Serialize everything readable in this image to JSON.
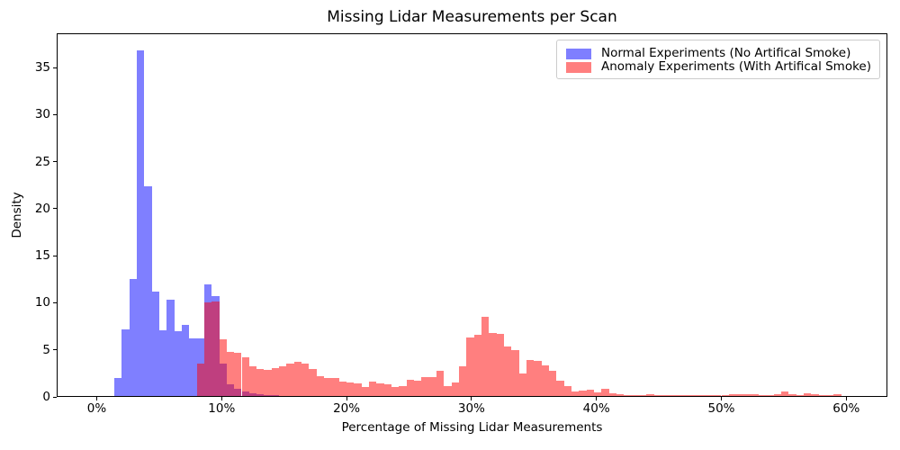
{
  "figure": {
    "title": "Missing Lidar Measurements per Scan",
    "xlabel": "Percentage of Missing Lidar Measurements",
    "ylabel": "Density"
  },
  "legend": {
    "items": [
      {
        "label": "Normal Experiments (No Artifical Smoke)",
        "color": "#7f7fff"
      },
      {
        "label": "Anomaly Experiments (With Artifical Smoke)",
        "color": "#ff7f7f"
      }
    ]
  },
  "colors": {
    "normal_bar": "#7f7fff",
    "anomaly_bar": "rgba(255,0,0,0.5)",
    "overlap_seen": "#bf4080",
    "axis": "#000000",
    "legend_border": "#cccccc"
  },
  "chart_data": {
    "type": "bar",
    "subtype": "overlaid-histogram",
    "title": "Missing Lidar Measurements per Scan",
    "xlabel": "Percentage of Missing Lidar Measurements",
    "ylabel": "Density",
    "grid": false,
    "legend_position": "upper right",
    "xlim_percent": [
      -3.2,
      63.3
    ],
    "ylim": [
      0,
      38.6
    ],
    "x_tick_values": [
      0,
      10,
      20,
      30,
      40,
      50,
      60
    ],
    "x_tick_labels": [
      "0%",
      "10%",
      "20%",
      "30%",
      "40%",
      "50%",
      "60%"
    ],
    "y_tick_values": [
      0,
      5,
      10,
      15,
      20,
      25,
      30,
      35
    ],
    "bin_width_percent": 0.6,
    "series": [
      {
        "name": "Normal Experiments (No Artifical Smoke)",
        "css_fill": "#7f7fff",
        "start_percent": 1.4,
        "densities": [
          1.9,
          7.1,
          12.4,
          36.7,
          22.3,
          11.1,
          7.0,
          10.2,
          6.9,
          7.6,
          6.1,
          6.1,
          11.9,
          10.6,
          3.4,
          1.2,
          0.8,
          0.5,
          0.3,
          0.2,
          0.1,
          0.1
        ]
      },
      {
        "name": "Anomaly Experiments (With Artifical Smoke)",
        "css_fill": "rgba(255,0,0,0.5)",
        "start_percent": 8.0,
        "densities": [
          3.4,
          9.9,
          10.0,
          6.0,
          4.7,
          4.6,
          4.1,
          3.2,
          2.9,
          2.8,
          3.0,
          3.2,
          3.4,
          3.6,
          3.4,
          2.9,
          2.1,
          1.9,
          1.9,
          1.5,
          1.4,
          1.3,
          1.0,
          1.5,
          1.3,
          1.2,
          1.0,
          1.1,
          1.75,
          1.65,
          2.0,
          2.0,
          2.7,
          1.1,
          1.4,
          3.2,
          6.2,
          6.5,
          8.4,
          6.7,
          6.6,
          5.3,
          4.9,
          2.4,
          3.8,
          3.7,
          3.3,
          2.7,
          1.6,
          1.1,
          0.5,
          0.6,
          0.7,
          0.4,
          0.8,
          0.3,
          0.2,
          0.1,
          0.1,
          0.1,
          0.15,
          0.1,
          0.05,
          0.05,
          0.05,
          0.05,
          0.05,
          0.1,
          0.05,
          0.05,
          0.05,
          0.15,
          0.2,
          0.2,
          0.15,
          0.1,
          0.05,
          0.2,
          0.45,
          0.2,
          0.1,
          0.25,
          0.15,
          0.05,
          0.05,
          0.2
        ]
      }
    ]
  }
}
